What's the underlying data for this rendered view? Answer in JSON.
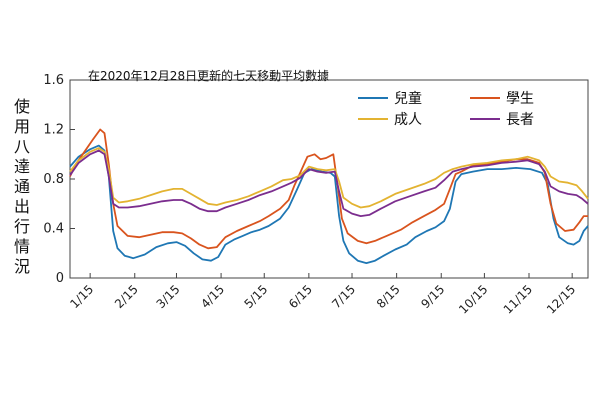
{
  "chart_data": {
    "type": "line",
    "annotation": "在2020年12月28日更新的七天移動平均數據",
    "ylabel": "使用八達通出行情況",
    "ylim": [
      0,
      1.6
    ],
    "yticks": [
      0,
      0.4,
      0.8,
      1.2,
      1.6
    ],
    "ytick_labels": [
      "0",
      "0.4",
      "0.8",
      "1.2",
      "1.6"
    ],
    "x_range": [
      0,
      360
    ],
    "xticks": [
      14,
      45,
      74,
      105,
      135,
      166,
      196,
      227,
      258,
      288,
      319,
      349
    ],
    "xtick_labels": [
      "1/15",
      "2/15",
      "3/15",
      "4/15",
      "5/15",
      "6/15",
      "7/15",
      "8/15",
      "9/15",
      "10/15",
      "11/15",
      "12/15"
    ],
    "legend_position": "top-right",
    "series": [
      {
        "name": "兒童",
        "color": "#1f77b4",
        "points": [
          [
            0,
            0.9
          ],
          [
            6,
            0.98
          ],
          [
            14,
            1.04
          ],
          [
            20,
            1.07
          ],
          [
            24,
            1.03
          ],
          [
            27,
            0.82
          ],
          [
            30,
            0.38
          ],
          [
            33,
            0.24
          ],
          [
            38,
            0.18
          ],
          [
            44,
            0.16
          ],
          [
            52,
            0.19
          ],
          [
            60,
            0.25
          ],
          [
            68,
            0.28
          ],
          [
            74,
            0.29
          ],
          [
            80,
            0.26
          ],
          [
            86,
            0.2
          ],
          [
            92,
            0.15
          ],
          [
            98,
            0.14
          ],
          [
            103,
            0.17
          ],
          [
            108,
            0.27
          ],
          [
            114,
            0.31
          ],
          [
            120,
            0.34
          ],
          [
            126,
            0.37
          ],
          [
            132,
            0.39
          ],
          [
            138,
            0.42
          ],
          [
            146,
            0.48
          ],
          [
            152,
            0.57
          ],
          [
            158,
            0.72
          ],
          [
            163,
            0.85
          ],
          [
            168,
            0.88
          ],
          [
            175,
            0.86
          ],
          [
            181,
            0.85
          ],
          [
            184,
            0.82
          ],
          [
            187,
            0.5
          ],
          [
            190,
            0.3
          ],
          [
            194,
            0.2
          ],
          [
            200,
            0.14
          ],
          [
            206,
            0.12
          ],
          [
            212,
            0.14
          ],
          [
            218,
            0.18
          ],
          [
            226,
            0.23
          ],
          [
            234,
            0.27
          ],
          [
            240,
            0.33
          ],
          [
            248,
            0.38
          ],
          [
            254,
            0.41
          ],
          [
            260,
            0.46
          ],
          [
            264,
            0.56
          ],
          [
            268,
            0.78
          ],
          [
            272,
            0.84
          ],
          [
            280,
            0.86
          ],
          [
            290,
            0.88
          ],
          [
            300,
            0.88
          ],
          [
            310,
            0.89
          ],
          [
            320,
            0.88
          ],
          [
            328,
            0.85
          ],
          [
            332,
            0.76
          ],
          [
            336,
            0.48
          ],
          [
            340,
            0.33
          ],
          [
            346,
            0.28
          ],
          [
            350,
            0.27
          ],
          [
            354,
            0.3
          ],
          [
            357,
            0.38
          ],
          [
            360,
            0.42
          ]
        ]
      },
      {
        "name": "學生",
        "color": "#d9541e",
        "points": [
          [
            0,
            0.82
          ],
          [
            4,
            0.92
          ],
          [
            10,
            1.02
          ],
          [
            16,
            1.12
          ],
          [
            21,
            1.2
          ],
          [
            24,
            1.17
          ],
          [
            27,
            0.92
          ],
          [
            30,
            0.6
          ],
          [
            33,
            0.42
          ],
          [
            40,
            0.34
          ],
          [
            48,
            0.33
          ],
          [
            56,
            0.35
          ],
          [
            64,
            0.37
          ],
          [
            72,
            0.37
          ],
          [
            78,
            0.36
          ],
          [
            84,
            0.32
          ],
          [
            90,
            0.27
          ],
          [
            96,
            0.24
          ],
          [
            102,
            0.25
          ],
          [
            108,
            0.33
          ],
          [
            116,
            0.38
          ],
          [
            124,
            0.42
          ],
          [
            132,
            0.46
          ],
          [
            138,
            0.5
          ],
          [
            146,
            0.56
          ],
          [
            152,
            0.63
          ],
          [
            156,
            0.75
          ],
          [
            160,
            0.85
          ],
          [
            165,
            0.98
          ],
          [
            170,
            1.0
          ],
          [
            174,
            0.96
          ],
          [
            178,
            0.97
          ],
          [
            183,
            1.0
          ],
          [
            186,
            0.75
          ],
          [
            189,
            0.48
          ],
          [
            193,
            0.36
          ],
          [
            200,
            0.3
          ],
          [
            206,
            0.28
          ],
          [
            212,
            0.3
          ],
          [
            220,
            0.34
          ],
          [
            230,
            0.39
          ],
          [
            238,
            0.45
          ],
          [
            246,
            0.5
          ],
          [
            254,
            0.55
          ],
          [
            260,
            0.6
          ],
          [
            264,
            0.72
          ],
          [
            268,
            0.84
          ],
          [
            272,
            0.86
          ],
          [
            280,
            0.91
          ],
          [
            290,
            0.92
          ],
          [
            300,
            0.94
          ],
          [
            310,
            0.96
          ],
          [
            318,
            0.96
          ],
          [
            326,
            0.93
          ],
          [
            330,
            0.85
          ],
          [
            334,
            0.6
          ],
          [
            338,
            0.44
          ],
          [
            344,
            0.38
          ],
          [
            350,
            0.39
          ],
          [
            354,
            0.45
          ],
          [
            357,
            0.5
          ],
          [
            360,
            0.5
          ]
        ]
      },
      {
        "name": "成人",
        "color": "#e3b331",
        "points": [
          [
            0,
            0.86
          ],
          [
            6,
            0.95
          ],
          [
            14,
            1.02
          ],
          [
            20,
            1.05
          ],
          [
            24,
            1.02
          ],
          [
            27,
            0.88
          ],
          [
            30,
            0.65
          ],
          [
            34,
            0.61
          ],
          [
            40,
            0.62
          ],
          [
            48,
            0.64
          ],
          [
            56,
            0.67
          ],
          [
            64,
            0.7
          ],
          [
            72,
            0.72
          ],
          [
            78,
            0.72
          ],
          [
            84,
            0.68
          ],
          [
            90,
            0.64
          ],
          [
            96,
            0.6
          ],
          [
            102,
            0.59
          ],
          [
            108,
            0.61
          ],
          [
            116,
            0.63
          ],
          [
            124,
            0.66
          ],
          [
            132,
            0.7
          ],
          [
            140,
            0.74
          ],
          [
            148,
            0.79
          ],
          [
            154,
            0.8
          ],
          [
            160,
            0.83
          ],
          [
            166,
            0.9
          ],
          [
            172,
            0.88
          ],
          [
            178,
            0.87
          ],
          [
            184,
            0.88
          ],
          [
            187,
            0.78
          ],
          [
            190,
            0.65
          ],
          [
            196,
            0.6
          ],
          [
            202,
            0.57
          ],
          [
            208,
            0.58
          ],
          [
            216,
            0.62
          ],
          [
            226,
            0.68
          ],
          [
            236,
            0.72
          ],
          [
            246,
            0.76
          ],
          [
            254,
            0.8
          ],
          [
            260,
            0.85
          ],
          [
            266,
            0.88
          ],
          [
            272,
            0.9
          ],
          [
            280,
            0.92
          ],
          [
            290,
            0.93
          ],
          [
            300,
            0.95
          ],
          [
            310,
            0.96
          ],
          [
            318,
            0.98
          ],
          [
            326,
            0.95
          ],
          [
            330,
            0.9
          ],
          [
            334,
            0.82
          ],
          [
            340,
            0.78
          ],
          [
            346,
            0.77
          ],
          [
            352,
            0.75
          ],
          [
            356,
            0.7
          ],
          [
            360,
            0.64
          ]
        ]
      },
      {
        "name": "長者",
        "color": "#7b2d8e",
        "points": [
          [
            0,
            0.83
          ],
          [
            6,
            0.93
          ],
          [
            14,
            1.0
          ],
          [
            20,
            1.03
          ],
          [
            24,
            1.0
          ],
          [
            27,
            0.82
          ],
          [
            30,
            0.6
          ],
          [
            34,
            0.57
          ],
          [
            40,
            0.57
          ],
          [
            48,
            0.58
          ],
          [
            56,
            0.6
          ],
          [
            64,
            0.62
          ],
          [
            72,
            0.63
          ],
          [
            78,
            0.63
          ],
          [
            84,
            0.6
          ],
          [
            90,
            0.56
          ],
          [
            96,
            0.54
          ],
          [
            102,
            0.54
          ],
          [
            108,
            0.57
          ],
          [
            116,
            0.6
          ],
          [
            124,
            0.63
          ],
          [
            132,
            0.67
          ],
          [
            140,
            0.7
          ],
          [
            148,
            0.74
          ],
          [
            154,
            0.77
          ],
          [
            160,
            0.81
          ],
          [
            166,
            0.88
          ],
          [
            172,
            0.86
          ],
          [
            178,
            0.85
          ],
          [
            184,
            0.86
          ],
          [
            187,
            0.7
          ],
          [
            190,
            0.56
          ],
          [
            196,
            0.52
          ],
          [
            202,
            0.5
          ],
          [
            208,
            0.51
          ],
          [
            216,
            0.56
          ],
          [
            226,
            0.62
          ],
          [
            236,
            0.66
          ],
          [
            246,
            0.7
          ],
          [
            254,
            0.73
          ],
          [
            260,
            0.79
          ],
          [
            266,
            0.86
          ],
          [
            272,
            0.88
          ],
          [
            280,
            0.9
          ],
          [
            290,
            0.91
          ],
          [
            300,
            0.93
          ],
          [
            310,
            0.94
          ],
          [
            318,
            0.95
          ],
          [
            326,
            0.92
          ],
          [
            330,
            0.86
          ],
          [
            334,
            0.74
          ],
          [
            340,
            0.7
          ],
          [
            346,
            0.68
          ],
          [
            352,
            0.67
          ],
          [
            356,
            0.64
          ],
          [
            360,
            0.6
          ]
        ]
      }
    ]
  }
}
